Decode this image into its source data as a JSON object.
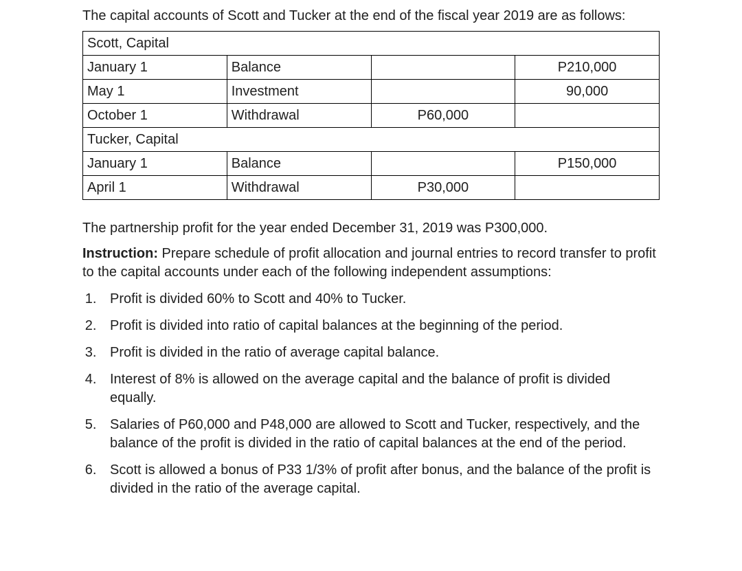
{
  "intro": "The capital accounts of Scott and Tucker at the end of the fiscal year 2019 are as follows:",
  "table": {
    "sections": [
      {
        "header": "Scott, Capital",
        "rows": [
          {
            "date": "January 1",
            "type": "Balance",
            "debit": "",
            "credit": "P210,000"
          },
          {
            "date": "May 1",
            "type": "Investment",
            "debit": "",
            "credit": "90,000"
          },
          {
            "date": "October 1",
            "type": "Withdrawal",
            "debit": "P60,000",
            "credit": ""
          }
        ]
      },
      {
        "header": "Tucker, Capital",
        "rows": [
          {
            "date": "January 1",
            "type": "Balance",
            "debit": "",
            "credit": "P150,000"
          },
          {
            "date": "April 1",
            "type": "Withdrawal",
            "debit": "P30,000",
            "credit": ""
          }
        ]
      }
    ]
  },
  "profit_line": "The partnership profit for the year ended December 31, 2019 was P300,000.",
  "instruction_label": "Instruction:",
  "instruction_text": " Prepare schedule of profit allocation and journal entries to record transfer to profit to the capital accounts under each of the following independent assumptions:",
  "assumptions": [
    "Profit is divided 60% to Scott and 40% to Tucker.",
    "Profit is divided into ratio of capital balances at the beginning of the period.",
    "Profit is divided in the ratio of average capital balance.",
    "Interest of 8% is allowed on the average capital and the balance of profit is divided equally.",
    "Salaries of P60,000 and P48,000 are allowed to Scott and Tucker, respectively, and the balance of the profit is divided in the ratio of capital balances at the end of the period.",
    "Scott is allowed a bonus of P33 1/3% of profit after bonus, and the balance of the profit is divided in the ratio of the average capital."
  ]
}
